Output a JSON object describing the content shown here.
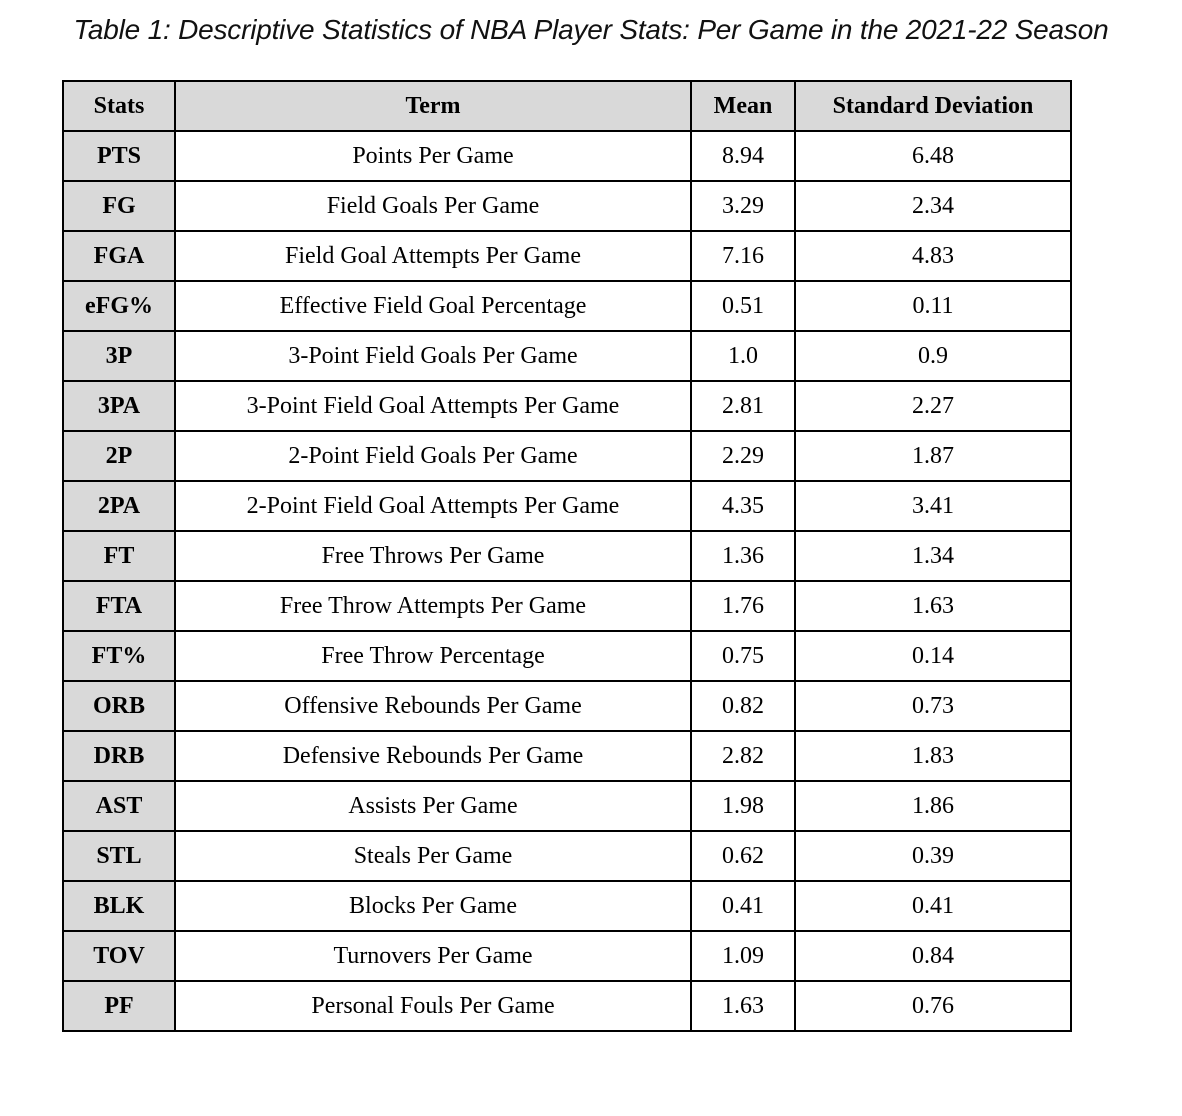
{
  "caption": "Table 1: Descriptive Statistics of NBA Player Stats: Per Game in the 2021-22 Season",
  "headers": [
    "Stats",
    "Term",
    "Mean",
    "Standard Deviation"
  ],
  "rows": [
    {
      "stat": "PTS",
      "term": "Points Per Game",
      "mean": "8.94",
      "sd": "6.48"
    },
    {
      "stat": "FG",
      "term": "Field Goals Per Game",
      "mean": "3.29",
      "sd": "2.34"
    },
    {
      "stat": "FGA",
      "term": "Field Goal Attempts Per Game",
      "mean": "7.16",
      "sd": "4.83"
    },
    {
      "stat": "eFG%",
      "term": "Effective Field Goal Percentage",
      "mean": "0.51",
      "sd": "0.11"
    },
    {
      "stat": "3P",
      "term": "3-Point Field Goals Per Game",
      "mean": "1.0",
      "sd": "0.9"
    },
    {
      "stat": "3PA",
      "term": "3-Point Field Goal Attempts Per Game",
      "mean": "2.81",
      "sd": "2.27"
    },
    {
      "stat": "2P",
      "term": "2-Point Field Goals Per Game",
      "mean": "2.29",
      "sd": "1.87"
    },
    {
      "stat": "2PA",
      "term": "2-Point Field Goal Attempts Per Game",
      "mean": "4.35",
      "sd": "3.41"
    },
    {
      "stat": "FT",
      "term": "Free Throws Per Game",
      "mean": "1.36",
      "sd": "1.34"
    },
    {
      "stat": "FTA",
      "term": "Free Throw Attempts Per Game",
      "mean": "1.76",
      "sd": "1.63"
    },
    {
      "stat": "FT%",
      "term": "Free Throw Percentage",
      "mean": "0.75",
      "sd": "0.14"
    },
    {
      "stat": "ORB",
      "term": "Offensive Rebounds Per Game",
      "mean": "0.82",
      "sd": "0.73"
    },
    {
      "stat": "DRB",
      "term": "Defensive Rebounds Per Game",
      "mean": "2.82",
      "sd": "1.83"
    },
    {
      "stat": "AST",
      "term": "Assists Per Game",
      "mean": "1.98",
      "sd": "1.86"
    },
    {
      "stat": "STL",
      "term": "Steals Per Game",
      "mean": "0.62",
      "sd": "0.39"
    },
    {
      "stat": "BLK",
      "term": "Blocks Per Game",
      "mean": "0.41",
      "sd": "0.41"
    },
    {
      "stat": "TOV",
      "term": "Turnovers Per Game",
      "mean": "1.09",
      "sd": "0.84"
    },
    {
      "stat": "PF",
      "term": "Personal Fouls Per Game",
      "mean": "1.63",
      "sd": "0.76"
    }
  ],
  "colors": {
    "header_bg": "#d9d9d9",
    "key_bg": "#d9d9d9",
    "cell_bg": "#ffffff",
    "border": "#000000"
  }
}
